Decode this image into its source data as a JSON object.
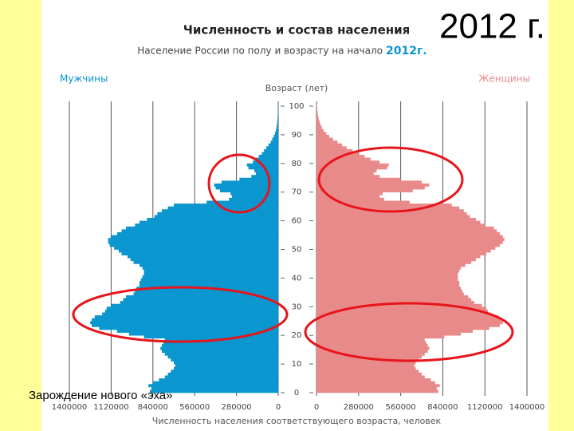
{
  "chart_data": {
    "type": "population_pyramid",
    "title": "Численность и состав населения",
    "subtitle": "Население России по полу и возрасту на начало",
    "subtitle_year": "2012г.",
    "big_label": "2012 г.",
    "y_label": "Возраст (лет)",
    "x_label": "Численность населения соответствующего возраста, человек",
    "annotation": "Зарождение нового «эха»",
    "y": [
      0,
      1,
      2,
      3,
      4,
      5,
      6,
      7,
      8,
      9,
      10,
      11,
      12,
      13,
      14,
      15,
      16,
      17,
      18,
      19,
      20,
      21,
      22,
      23,
      24,
      25,
      26,
      27,
      28,
      29,
      30,
      31,
      32,
      33,
      34,
      35,
      36,
      37,
      38,
      39,
      40,
      41,
      42,
      43,
      44,
      45,
      46,
      47,
      48,
      49,
      50,
      51,
      52,
      53,
      54,
      55,
      56,
      57,
      58,
      59,
      60,
      61,
      62,
      63,
      64,
      65,
      66,
      67,
      68,
      69,
      70,
      71,
      72,
      73,
      74,
      75,
      76,
      77,
      78,
      79,
      80,
      81,
      82,
      83,
      84,
      85,
      86,
      87,
      88,
      89,
      90,
      91,
      92,
      93,
      94,
      95,
      96,
      97,
      98,
      99,
      100
    ],
    "ylim": [
      0,
      100
    ],
    "yticks": [
      0,
      10,
      20,
      30,
      40,
      50,
      60,
      70,
      80,
      90,
      100
    ],
    "xlim": [
      0,
      1400000
    ],
    "xticks": [
      0,
      280000,
      560000,
      840000,
      1120000,
      1400000
    ],
    "grid": true,
    "series": [
      {
        "name": "Мужчины",
        "color": "#0a96cf",
        "side": "left",
        "values": [
          860000,
          850000,
          870000,
          840000,
          800000,
          760000,
          740000,
          720000,
          700000,
          690000,
          700000,
          720000,
          740000,
          760000,
          780000,
          790000,
          780000,
          770000,
          760000,
          900000,
          1000000,
          1080000,
          1200000,
          1250000,
          1260000,
          1250000,
          1230000,
          1180000,
          1160000,
          1150000,
          1120000,
          1060000,
          1040000,
          1020000,
          970000,
          960000,
          950000,
          930000,
          930000,
          920000,
          910000,
          900000,
          900000,
          910000,
          930000,
          970000,
          990000,
          1010000,
          1050000,
          1070000,
          1100000,
          1130000,
          1140000,
          1140000,
          1120000,
          1080000,
          1050000,
          1020000,
          960000,
          930000,
          880000,
          830000,
          810000,
          780000,
          740000,
          700000,
          480000,
          330000,
          310000,
          320000,
          390000,
          420000,
          430000,
          380000,
          260000,
          180000,
          150000,
          160000,
          200000,
          210000,
          170000,
          150000,
          130000,
          110000,
          95000,
          80000,
          65000,
          50000,
          40000,
          30000,
          22000,
          16000,
          12000,
          9000,
          7000,
          5000,
          4000,
          3000,
          2000,
          1500,
          1000
        ]
      },
      {
        "name": "Женщины",
        "color": "#e98a8a",
        "side": "right",
        "values": [
          810000,
          800000,
          820000,
          790000,
          760000,
          720000,
          700000,
          680000,
          660000,
          650000,
          660000,
          680000,
          700000,
          720000,
          740000,
          750000,
          740000,
          730000,
          720000,
          850000,
          960000,
          1040000,
          1150000,
          1220000,
          1240000,
          1230000,
          1210000,
          1160000,
          1140000,
          1130000,
          1100000,
          1050000,
          1030000,
          1010000,
          980000,
          970000,
          960000,
          950000,
          950000,
          940000,
          940000,
          940000,
          950000,
          960000,
          990000,
          1030000,
          1060000,
          1090000,
          1130000,
          1160000,
          1190000,
          1220000,
          1240000,
          1250000,
          1240000,
          1220000,
          1200000,
          1180000,
          1120000,
          1090000,
          1060000,
          1020000,
          1000000,
          980000,
          950000,
          900000,
          620000,
          450000,
          420000,
          440000,
          640000,
          720000,
          750000,
          700000,
          560000,
          420000,
          380000,
          400000,
          470000,
          480000,
          420000,
          360000,
          320000,
          280000,
          240000,
          200000,
          170000,
          140000,
          110000,
          85000,
          65000,
          48000,
          36000,
          28000,
          21000,
          15000,
          11000,
          8000,
          6000,
          4000,
          3000
        ]
      }
    ]
  }
}
